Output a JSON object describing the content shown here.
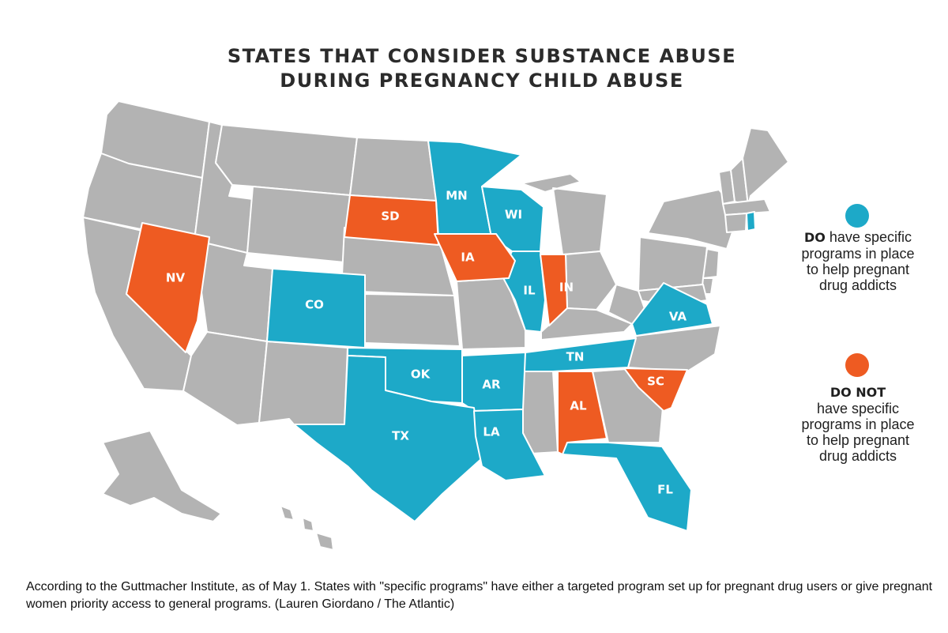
{
  "title_line1": "STATES THAT CONSIDER SUBSTANCE ABUSE",
  "title_line2": "DURING PREGNANCY CHILD ABUSE",
  "colors": {
    "do_have": "#1DA9C8",
    "do_not": "#EE5B22",
    "other": "#B3B3B3",
    "border": "#ffffff"
  },
  "legend": {
    "do_have": {
      "bold": "DO",
      "rest": " have specific programs in place to help pregnant drug addicts"
    },
    "do_not": {
      "bold": "DO NOT",
      "rest": "have specific programs in place to help pregnant drug addicts"
    }
  },
  "states": {
    "do_have": [
      "MN",
      "WI",
      "RI",
      "CO",
      "IL",
      "VA",
      "TN",
      "OK",
      "AR",
      "TX",
      "LA",
      "FL"
    ],
    "do_not": [
      "SD",
      "IA",
      "NV",
      "IN",
      "SC",
      "AL"
    ]
  },
  "caption": "According to the Guttmacher Institute, as of May 1. States with \"specific programs\" have either a targeted program set up for pregnant drug users or give pregnant women priority access to general programs. (Lauren Giordano / The Atlantic)"
}
